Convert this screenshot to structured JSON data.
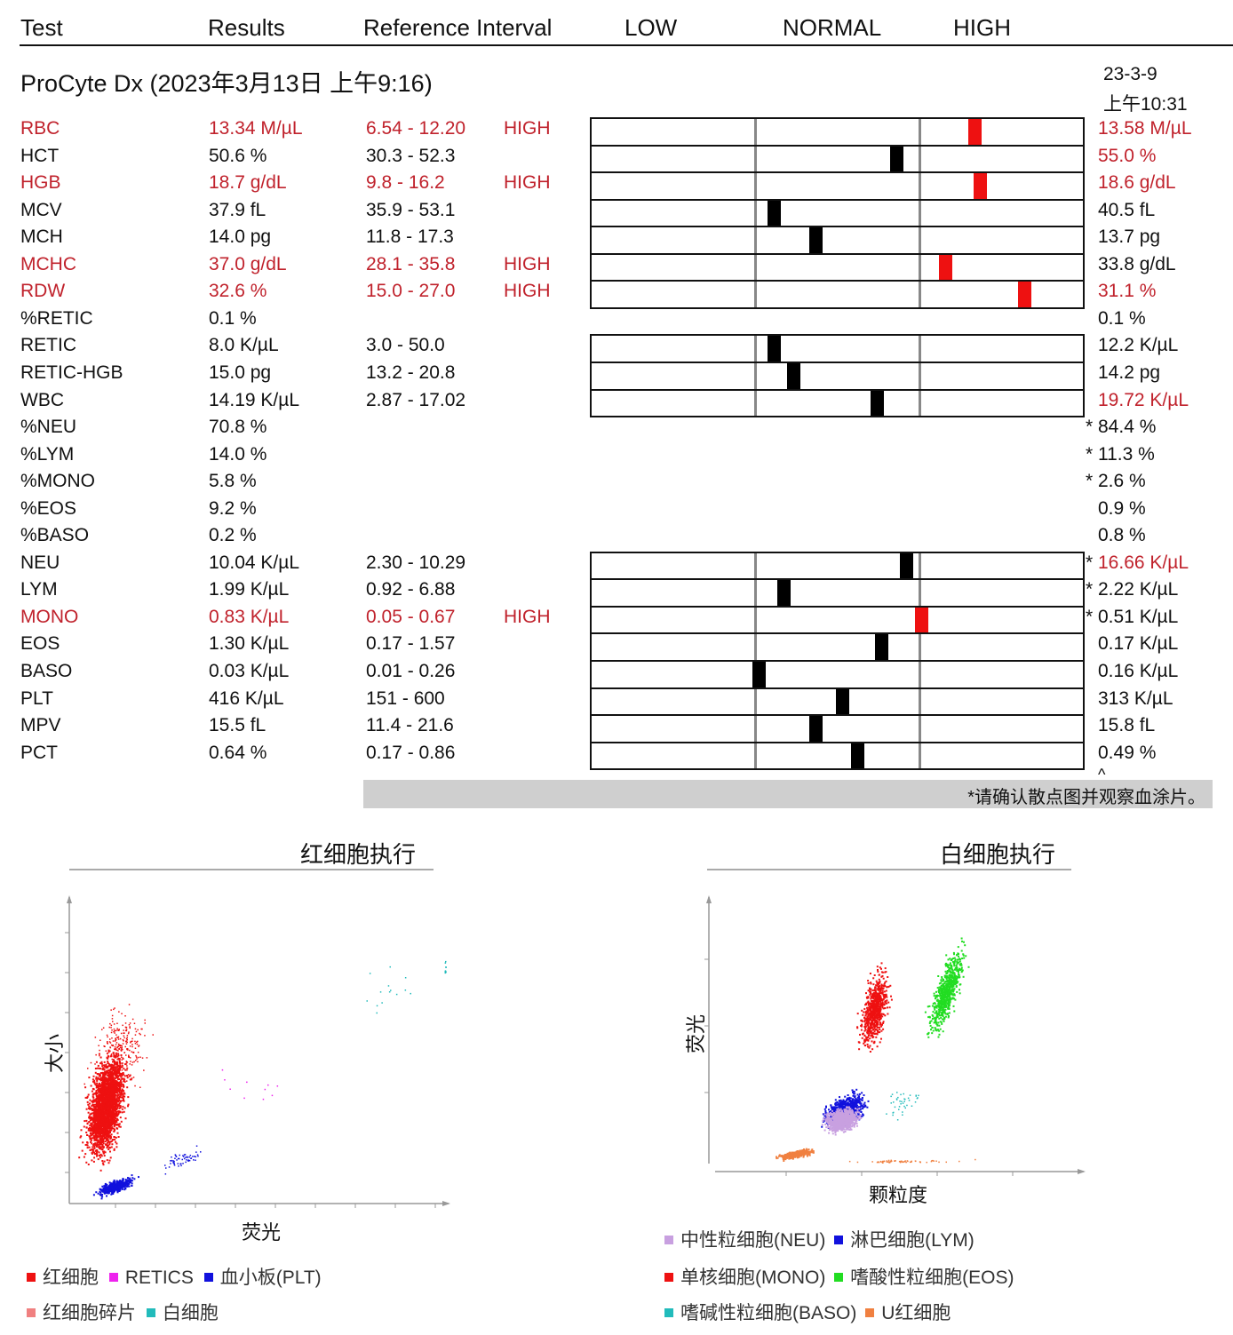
{
  "header": {
    "test": "Test",
    "results": "Results",
    "reference": "Reference Interval",
    "low": "LOW",
    "normal": "NORMAL",
    "high": "HIGH"
  },
  "title": "ProCyte Dx (2023年3月13日 上午9:16)",
  "compare_date": "23-3-9",
  "compare_time": "上午10:31",
  "rows": [
    {
      "name": "RBC",
      "result": "13.34 M/µL",
      "ref": "6.54 - 12.20",
      "flag": "HIGH",
      "prev": "13.58 M/µL",
      "star": "",
      "high": true,
      "prev_high": true,
      "marker": 0.78
    },
    {
      "name": "HCT",
      "result": "50.6 %",
      "ref": "30.3 - 52.3",
      "flag": "",
      "prev": "55.0 %",
      "star": "",
      "high": false,
      "prev_high": true,
      "marker": 0.62
    },
    {
      "name": "HGB",
      "result": "18.7 g/dL",
      "ref": "9.8 - 16.2",
      "flag": "HIGH",
      "prev": "18.6 g/dL",
      "star": "",
      "high": true,
      "prev_high": true,
      "marker": 0.79
    },
    {
      "name": "MCV",
      "result": "37.9 fL",
      "ref": "35.9 - 53.1",
      "flag": "",
      "prev": "40.5 fL",
      "star": "",
      "high": false,
      "prev_high": false,
      "marker": 0.37
    },
    {
      "name": "MCH",
      "result": "14.0 pg",
      "ref": "11.8 - 17.3",
      "flag": "",
      "prev": "13.7 pg",
      "star": "",
      "high": false,
      "prev_high": false,
      "marker": 0.455
    },
    {
      "name": "MCHC",
      "result": "37.0 g/dL",
      "ref": "28.1 - 35.8",
      "flag": "HIGH",
      "prev": "33.8 g/dL",
      "star": "",
      "high": true,
      "prev_high": false,
      "marker": 0.72
    },
    {
      "name": "RDW",
      "result": "32.6 %",
      "ref": "15.0 - 27.0",
      "flag": "HIGH",
      "prev": "31.1 %",
      "star": "",
      "high": true,
      "prev_high": true,
      "marker": 0.88
    },
    {
      "name": "%RETIC",
      "result": "0.1 %",
      "ref": "",
      "flag": "",
      "prev": "0.1 %",
      "star": "",
      "high": false,
      "prev_high": false,
      "marker": null
    },
    {
      "name": "RETIC",
      "result": "8.0 K/µL",
      "ref": "3.0 - 50.0",
      "flag": "",
      "prev": "12.2 K/µL",
      "star": "",
      "high": false,
      "prev_high": false,
      "marker": 0.37
    },
    {
      "name": "RETIC-HGB",
      "result": "15.0 pg",
      "ref": "13.2 - 20.8",
      "flag": "",
      "prev": "14.2 pg",
      "star": "",
      "high": false,
      "prev_high": false,
      "marker": 0.41
    },
    {
      "name": "WBC",
      "result": "14.19 K/µL",
      "ref": "2.87 - 17.02",
      "flag": "",
      "prev": "19.72 K/µL",
      "star": "",
      "high": false,
      "prev_high": true,
      "marker": 0.58
    },
    {
      "name": "%NEU",
      "result": "70.8 %",
      "ref": "",
      "flag": "",
      "prev": "84.4 %",
      "star": "*",
      "high": false,
      "prev_high": false,
      "marker": null
    },
    {
      "name": "%LYM",
      "result": "14.0 %",
      "ref": "",
      "flag": "",
      "prev": "11.3 %",
      "star": "*",
      "high": false,
      "prev_high": false,
      "marker": null
    },
    {
      "name": "%MONO",
      "result": "5.8 %",
      "ref": "",
      "flag": "",
      "prev": "2.6 %",
      "star": "*",
      "high": false,
      "prev_high": false,
      "marker": null
    },
    {
      "name": "%EOS",
      "result": "9.2 %",
      "ref": "",
      "flag": "",
      "prev": "0.9 %",
      "star": "",
      "high": false,
      "prev_high": false,
      "marker": null
    },
    {
      "name": "%BASO",
      "result": "0.2 %",
      "ref": "",
      "flag": "",
      "prev": "0.8 %",
      "star": "",
      "high": false,
      "prev_high": false,
      "marker": null
    },
    {
      "name": "NEU",
      "result": "10.04 K/µL",
      "ref": "2.30 - 10.29",
      "flag": "",
      "prev": "16.66 K/µL",
      "star": "*",
      "high": false,
      "prev_high": true,
      "marker": 0.64
    },
    {
      "name": "LYM",
      "result": "1.99 K/µL",
      "ref": "0.92 - 6.88",
      "flag": "",
      "prev": "2.22 K/µL",
      "star": "*",
      "high": false,
      "prev_high": false,
      "marker": 0.39
    },
    {
      "name": "MONO",
      "result": "0.83 K/µL",
      "ref": "0.05 - 0.67",
      "flag": "HIGH",
      "prev": "0.51 K/µL",
      "star": "*",
      "high": true,
      "prev_high": false,
      "marker": 0.67
    },
    {
      "name": "EOS",
      "result": "1.30 K/µL",
      "ref": "0.17 - 1.57",
      "flag": "",
      "prev": "0.17 K/µL",
      "star": "",
      "high": false,
      "prev_high": false,
      "marker": 0.59
    },
    {
      "name": "BASO",
      "result": "0.03 K/µL",
      "ref": "0.01 - 0.26",
      "flag": "",
      "prev": "0.16 K/µL",
      "star": "",
      "high": false,
      "prev_high": false,
      "marker": 0.34
    },
    {
      "name": "PLT",
      "result": "416 K/µL",
      "ref": "151 - 600",
      "flag": "",
      "prev": "313 K/µL",
      "star": "",
      "high": false,
      "prev_high": false,
      "marker": 0.51
    },
    {
      "name": "MPV",
      "result": "15.5 fL",
      "ref": "11.4 - 21.6",
      "flag": "",
      "prev": "15.8 fL",
      "star": "",
      "high": false,
      "prev_high": false,
      "marker": 0.455
    },
    {
      "name": "PCT",
      "result": "0.64 %",
      "ref": "0.17 - 0.86",
      "flag": "",
      "prev": "0.49 %",
      "star": "",
      "high": false,
      "prev_high": false,
      "marker": 0.54
    }
  ],
  "note": "*请确认散点图并观察血涂片。",
  "colors": {
    "high": "#c0222c",
    "marker_normal": "#000000",
    "marker_high": "#ee1111"
  },
  "rbc_plot": {
    "title": "红细胞执行",
    "xlabel": "荧光",
    "ylabel": "大小",
    "legend": [
      {
        "label": "红细胞",
        "color": "#ee1111"
      },
      {
        "label": "RETICS",
        "color": "#ee22ee"
      },
      {
        "label": "血小板(PLT)",
        "color": "#1111dd"
      },
      {
        "label": "红细胞碎片",
        "color": "#f08080"
      },
      {
        "label": "白细胞",
        "color": "#22bbbb"
      }
    ]
  },
  "wbc_plot": {
    "title": "白细胞执行",
    "xlabel": "颗粒度",
    "ylabel": "荧光",
    "legend": [
      {
        "label": "中性粒细胞(NEU)",
        "color": "#c8a0e0"
      },
      {
        "label": "淋巴细胞(LYM)",
        "color": "#1111dd"
      },
      {
        "label": "单核细胞(MONO)",
        "color": "#ee1111"
      },
      {
        "label": "嗜酸性粒细胞(EOS)",
        "color": "#22dd22"
      },
      {
        "label": "嗜碱性粒细胞(BASO)",
        "color": "#22bbbb"
      },
      {
        "label": "U红细胞",
        "color": "#f08040"
      }
    ]
  }
}
